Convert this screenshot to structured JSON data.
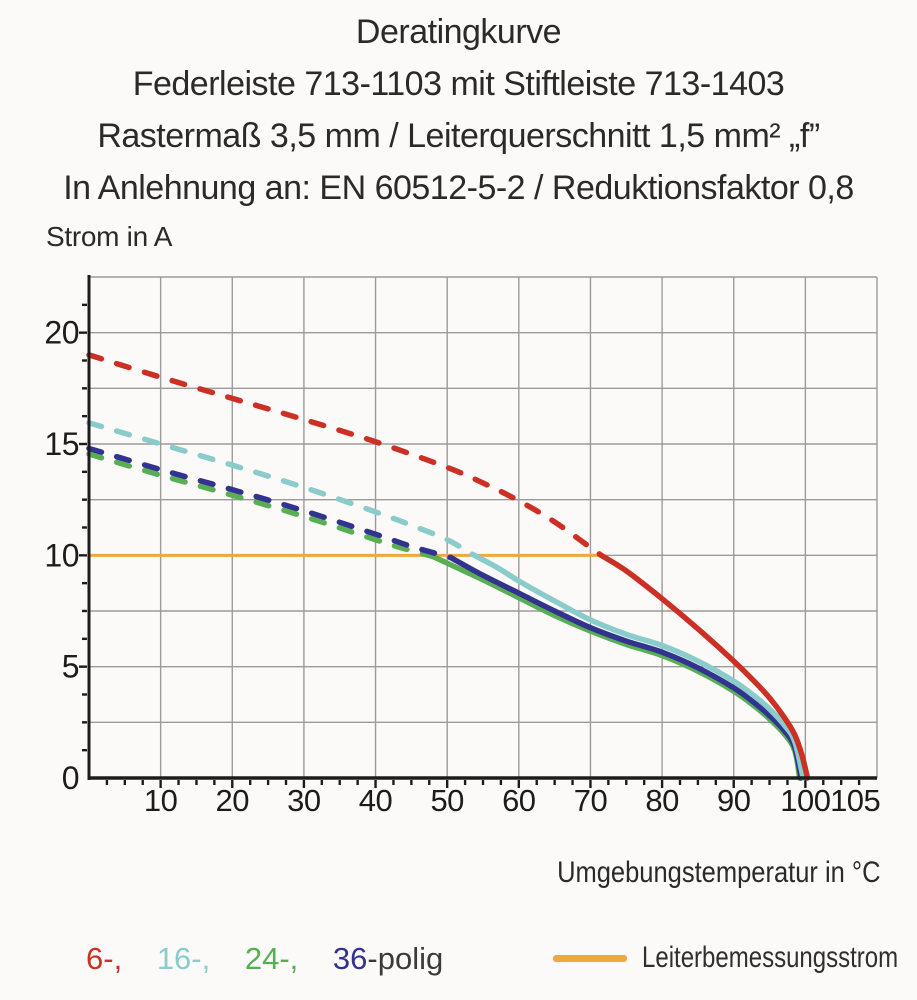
{
  "header": {
    "title": "Deratingkurve",
    "subtitle1": "Federleiste 713-1103 mit Stiftleiste 713-1403",
    "subtitle2": "Rastermaß 3,5 mm / Leiterquerschnitt 1,5 mm² „f”",
    "subtitle3": "In Anlehnung an: EN 60512-5-2 / Reduktionsfaktor 0,8"
  },
  "axes": {
    "y_title": "Strom in A",
    "x_title": "Umgebungstemperatur in °C"
  },
  "colors": {
    "red": "#CC3024",
    "cyan": "#89CCCB",
    "green": "#58AE52",
    "navy": "#32338F",
    "orange": "#EFA73F",
    "grid": "#9B9B9B",
    "axis": "#1C1C1C",
    "text": "#262626"
  },
  "chart_data": {
    "type": "line",
    "title": "Deratingkurve",
    "xlabel": "Umgebungstemperatur in °C",
    "ylabel": "Strom in A",
    "xlim": [
      0,
      110
    ],
    "ylim": [
      0,
      22.5
    ],
    "grid": true,
    "x_grid_step": 10,
    "y_grid_step": 2.5,
    "x_minor_tick_step": 2.5,
    "y_minor_tick_step": 1.25,
    "x_ticks": [
      {
        "v": 10,
        "label": "10"
      },
      {
        "v": 20,
        "label": "20"
      },
      {
        "v": 30,
        "label": "30"
      },
      {
        "v": 40,
        "label": "40"
      },
      {
        "v": 50,
        "label": "50"
      },
      {
        "v": 60,
        "label": "60"
      },
      {
        "v": 70,
        "label": "70"
      },
      {
        "v": 80,
        "label": "80"
      },
      {
        "v": 90,
        "label": "90"
      },
      {
        "v": 100,
        "label": "100"
      },
      {
        "v": 105,
        "label": "105",
        "dx": 14
      }
    ],
    "y_ticks": [
      {
        "v": 0,
        "label": "0"
      },
      {
        "v": 5,
        "label": "5"
      },
      {
        "v": 10,
        "label": "10"
      },
      {
        "v": 15,
        "label": "15"
      },
      {
        "v": 20,
        "label": "20"
      }
    ],
    "reference_line": {
      "name": "Leiterbemessungsstrom",
      "y": 10,
      "x_from": 0,
      "x_to": 71.5,
      "color": "#EFA73F"
    },
    "draw_order": [
      2,
      3,
      1,
      0
    ],
    "series": [
      {
        "name": "6-polig",
        "color": "#CC3024",
        "dashed": [
          [
            0,
            19.0
          ],
          [
            10,
            18.0
          ],
          [
            20,
            17.05
          ],
          [
            30,
            16.1
          ],
          [
            40,
            15.1
          ],
          [
            50,
            13.95
          ],
          [
            55,
            13.25
          ],
          [
            60,
            12.45
          ],
          [
            65,
            11.5
          ],
          [
            70,
            10.35
          ],
          [
            71.5,
            10.0
          ]
        ],
        "solid": [
          [
            71.5,
            10.0
          ],
          [
            75,
            9.3
          ],
          [
            80,
            8.05
          ],
          [
            85,
            6.7
          ],
          [
            90,
            5.25
          ],
          [
            93,
            4.3
          ],
          [
            95,
            3.6
          ],
          [
            97,
            2.75
          ],
          [
            98.5,
            1.95
          ],
          [
            99.5,
            1.05
          ],
          [
            100.3,
            0
          ]
        ]
      },
      {
        "name": "16-polig",
        "color": "#89CCCB",
        "dashed": [
          [
            0,
            15.95
          ],
          [
            10,
            15.0
          ],
          [
            20,
            14.05
          ],
          [
            30,
            13.05
          ],
          [
            40,
            11.95
          ],
          [
            45,
            11.35
          ],
          [
            50,
            10.7
          ],
          [
            53.5,
            10.05
          ]
        ],
        "solid": [
          [
            53.5,
            10.05
          ],
          [
            57,
            9.45
          ],
          [
            60,
            8.85
          ],
          [
            65,
            7.95
          ],
          [
            70,
            7.1
          ],
          [
            75,
            6.45
          ],
          [
            80,
            5.95
          ],
          [
            85,
            5.25
          ],
          [
            90,
            4.35
          ],
          [
            93,
            3.65
          ],
          [
            95,
            3.1
          ],
          [
            97,
            2.4
          ],
          [
            98.5,
            1.65
          ],
          [
            99.7,
            0
          ]
        ]
      },
      {
        "name": "24-polig",
        "color": "#58AE52",
        "dashed": [
          [
            0,
            14.55
          ],
          [
            10,
            13.6
          ],
          [
            20,
            12.7
          ],
          [
            30,
            11.75
          ],
          [
            40,
            10.7
          ],
          [
            44,
            10.3
          ],
          [
            48,
            9.95
          ]
        ],
        "solid": [
          [
            48,
            9.95
          ],
          [
            52,
            9.35
          ],
          [
            55,
            8.9
          ],
          [
            60,
            8.1
          ],
          [
            65,
            7.3
          ],
          [
            70,
            6.6
          ],
          [
            75,
            6.0
          ],
          [
            80,
            5.5
          ],
          [
            85,
            4.8
          ],
          [
            90,
            3.9
          ],
          [
            93,
            3.2
          ],
          [
            95,
            2.65
          ],
          [
            97,
            2.0
          ],
          [
            98.5,
            1.25
          ],
          [
            99.2,
            0
          ]
        ]
      },
      {
        "name": "36-polig",
        "color": "#32338F",
        "dashed": [
          [
            0,
            14.8
          ],
          [
            10,
            13.85
          ],
          [
            20,
            12.95
          ],
          [
            30,
            12.0
          ],
          [
            40,
            10.95
          ],
          [
            45,
            10.4
          ],
          [
            50.5,
            9.9
          ]
        ],
        "solid": [
          [
            50.5,
            9.9
          ],
          [
            55,
            9.1
          ],
          [
            60,
            8.3
          ],
          [
            65,
            7.5
          ],
          [
            70,
            6.75
          ],
          [
            75,
            6.15
          ],
          [
            80,
            5.65
          ],
          [
            85,
            4.95
          ],
          [
            90,
            4.05
          ],
          [
            93,
            3.35
          ],
          [
            95,
            2.8
          ],
          [
            97,
            2.15
          ],
          [
            98.5,
            1.4
          ],
          [
            99.4,
            0
          ]
        ]
      }
    ]
  },
  "legend": {
    "poles": [
      {
        "label": "6-,",
        "color": "#CC3024"
      },
      {
        "label": "16-,",
        "color": "#89CCCB"
      },
      {
        "label": "24-,",
        "color": "#58AE52"
      },
      {
        "label": "36",
        "color": "#32338F"
      }
    ],
    "poles_suffix": "-polig",
    "reference_label": "Leiterbemessungsstrom",
    "reference_color": "#EFA73F"
  }
}
